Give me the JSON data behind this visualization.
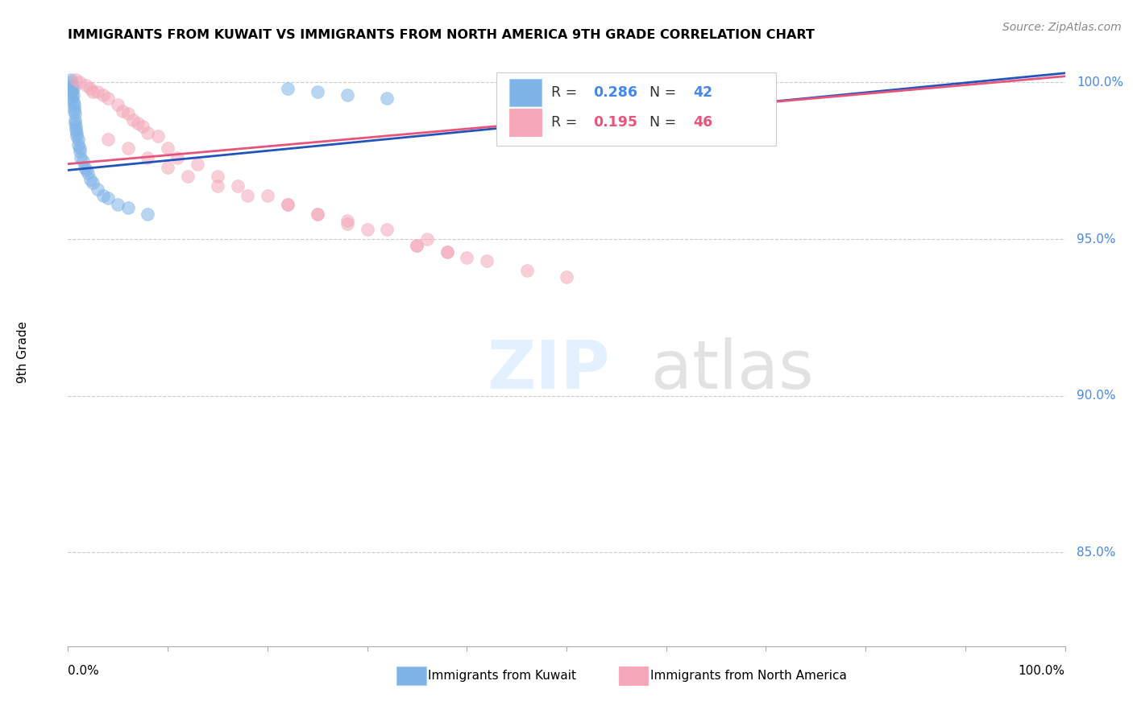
{
  "title": "IMMIGRANTS FROM KUWAIT VS IMMIGRANTS FROM NORTH AMERICA 9TH GRADE CORRELATION CHART",
  "source": "Source: ZipAtlas.com",
  "ylabel": "9th Grade",
  "legend_blue_R": "0.286",
  "legend_blue_N": "42",
  "legend_pink_R": "0.195",
  "legend_pink_N": "46",
  "legend_label_blue": "Immigrants from Kuwait",
  "legend_label_pink": "Immigrants from North America",
  "blue_color": "#7EB3E8",
  "pink_color": "#F4A7B9",
  "blue_line_color": "#2255BB",
  "pink_line_color": "#E8557A",
  "xmin": 0.0,
  "xmax": 1.0,
  "ymin": 0.82,
  "ymax": 1.008,
  "yticks": [
    0.85,
    0.9,
    0.95,
    1.0
  ],
  "ytick_labels": [
    "85.0%",
    "90.0%",
    "95.0%",
    "100.0%"
  ],
  "xtick_positions": [
    0.0,
    0.1,
    0.2,
    0.3,
    0.4,
    0.5,
    0.6,
    0.7,
    0.8,
    0.9,
    1.0
  ],
  "blue_trend_y0": 0.972,
  "blue_trend_y1": 1.003,
  "pink_trend_y0": 0.974,
  "pink_trend_y1": 1.002,
  "blue_x": [
    0.003,
    0.003,
    0.003,
    0.004,
    0.004,
    0.004,
    0.004,
    0.004,
    0.005,
    0.005,
    0.005,
    0.006,
    0.006,
    0.006,
    0.007,
    0.007,
    0.007,
    0.008,
    0.008,
    0.009,
    0.009,
    0.01,
    0.01,
    0.012,
    0.012,
    0.013,
    0.015,
    0.017,
    0.018,
    0.02,
    0.022,
    0.025,
    0.03,
    0.035,
    0.04,
    0.05,
    0.06,
    0.08,
    0.22,
    0.25,
    0.28,
    0.32
  ],
  "blue_y": [
    1.001,
    1.0,
    0.999,
    0.999,
    0.998,
    0.997,
    0.996,
    0.995,
    0.998,
    0.996,
    0.994,
    0.993,
    0.992,
    0.991,
    0.99,
    0.988,
    0.987,
    0.986,
    0.985,
    0.984,
    0.983,
    0.982,
    0.98,
    0.979,
    0.978,
    0.976,
    0.975,
    0.973,
    0.972,
    0.971,
    0.969,
    0.968,
    0.966,
    0.964,
    0.963,
    0.961,
    0.96,
    0.958,
    0.998,
    0.997,
    0.996,
    0.995
  ],
  "pink_x": [
    0.008,
    0.012,
    0.018,
    0.022,
    0.025,
    0.03,
    0.035,
    0.04,
    0.05,
    0.055,
    0.06,
    0.065,
    0.07,
    0.075,
    0.08,
    0.09,
    0.1,
    0.11,
    0.13,
    0.15,
    0.17,
    0.2,
    0.22,
    0.25,
    0.28,
    0.3,
    0.35,
    0.38,
    0.42,
    0.46,
    0.5,
    0.36,
    0.32,
    0.28,
    0.25,
    0.22,
    0.18,
    0.15,
    0.12,
    0.1,
    0.08,
    0.06,
    0.04,
    0.38,
    0.4,
    0.35
  ],
  "pink_y": [
    1.001,
    1.0,
    0.999,
    0.998,
    0.997,
    0.997,
    0.996,
    0.995,
    0.993,
    0.991,
    0.99,
    0.988,
    0.987,
    0.986,
    0.984,
    0.983,
    0.979,
    0.976,
    0.974,
    0.97,
    0.967,
    0.964,
    0.961,
    0.958,
    0.955,
    0.953,
    0.948,
    0.946,
    0.943,
    0.94,
    0.938,
    0.95,
    0.953,
    0.956,
    0.958,
    0.961,
    0.964,
    0.967,
    0.97,
    0.973,
    0.976,
    0.979,
    0.982,
    0.946,
    0.944,
    0.948
  ]
}
